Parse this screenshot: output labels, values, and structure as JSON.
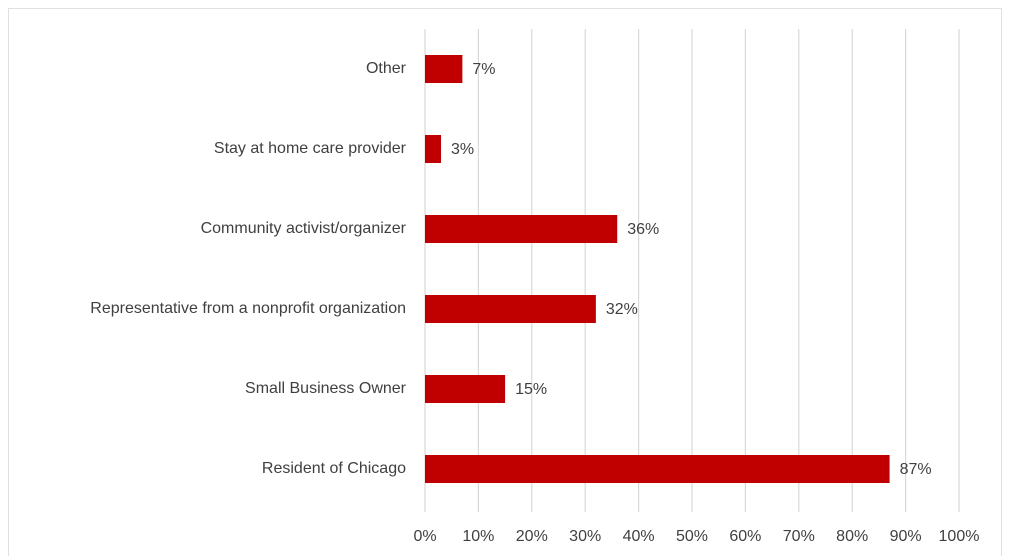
{
  "chart_data": {
    "type": "hbar",
    "categories": [
      "Other",
      "Stay at home care provider",
      "Community activist/organizer",
      "Representative from a nonprofit organization",
      "Small Business Owner",
      "Resident of Chicago"
    ],
    "values": [
      7,
      3,
      36,
      32,
      15,
      87
    ],
    "value_labels": [
      "7%",
      "3%",
      "36%",
      "32%",
      "15%",
      "87%"
    ],
    "color": "#c00000",
    "xlim": [
      0,
      100
    ],
    "xticks": [
      {
        "value": 0,
        "label": "0%"
      },
      {
        "value": 10,
        "label": "10%"
      },
      {
        "value": 20,
        "label": "20%"
      },
      {
        "value": 30,
        "label": "30%"
      },
      {
        "value": 40,
        "label": "40%"
      },
      {
        "value": 50,
        "label": "50%"
      },
      {
        "value": 60,
        "label": "60%"
      },
      {
        "value": 70,
        "label": "70%"
      },
      {
        "value": 80,
        "label": "80%"
      },
      {
        "value": 90,
        "label": "90%"
      },
      {
        "value": 100,
        "label": "100%"
      }
    ],
    "grid": true
  }
}
